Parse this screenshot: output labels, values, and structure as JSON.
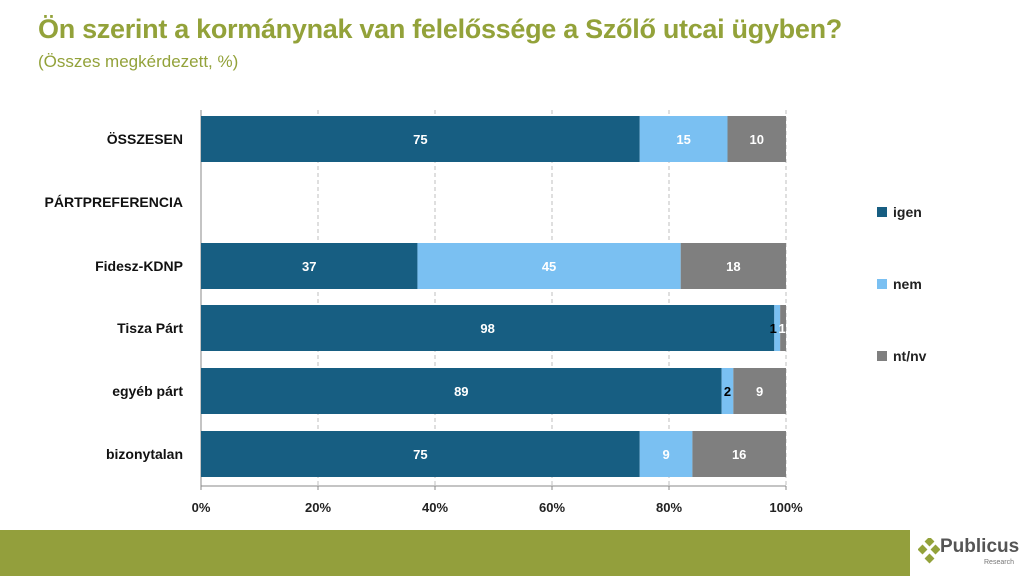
{
  "header": {
    "title": "Ön szerint a kormánynak van felelőssége a Szőlő utcai ügyben?",
    "subtitle": "(Összes megkérdezett, %)"
  },
  "logo": {
    "name": "Publicus",
    "sub": "Research"
  },
  "colors": {
    "igen": "#175e82",
    "nem": "#7ac0f2",
    "ntnv": "#7f7f7f",
    "accent": "#93a23a"
  },
  "chart_data": {
    "type": "bar",
    "orientation": "horizontal",
    "stacked": true,
    "title": "Ön szerint a kormánynak van felelőssége a Szőlő utcai ügyben?",
    "subtitle": "(Összes megkérdezett, %)",
    "categories": [
      "ÖSSZESEN",
      "PÁRTPREFERENCIA",
      "Fidesz-KDNP",
      "Tisza Párt",
      "egyéb párt",
      "bizonytalan"
    ],
    "series": [
      {
        "name": "igen",
        "values": [
          75,
          null,
          37,
          98,
          89,
          75
        ]
      },
      {
        "name": "nem",
        "values": [
          15,
          null,
          45,
          1,
          2,
          9
        ]
      },
      {
        "name": "nt/nv",
        "values": [
          10,
          null,
          18,
          1,
          9,
          16
        ]
      }
    ],
    "xlim": [
      0,
      100
    ],
    "xticks": [
      "0%",
      "20%",
      "40%",
      "60%",
      "80%",
      "100%"
    ],
    "grid": true,
    "legend": "right"
  }
}
